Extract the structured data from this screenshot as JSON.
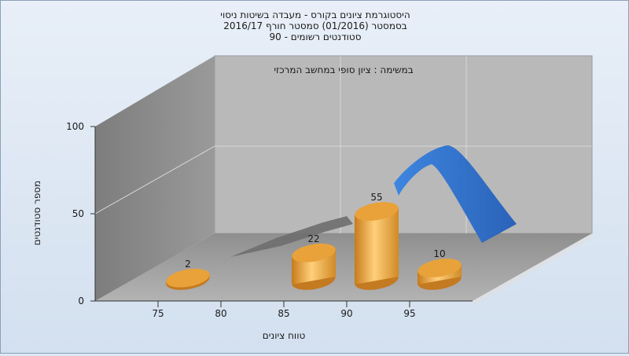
{
  "chart_data": {
    "type": "bar",
    "title_lines": [
      "היסטוגרמת ציונים בקורס - מעבדה בשיטות ניסוי",
      "בסמסטר  (01/2016)  סמסטר חורף 2016/17",
      "סטודנטים רשומים - 90"
    ],
    "subtitle": "במשימה : ציון סופי במחשב המרכזי",
    "xlabel": "טווח ציונים",
    "ylabel": "מספר סטודנטים",
    "x_ticks": [
      "75",
      "80",
      "85",
      "90",
      "95"
    ],
    "y_ticks": [
      "0",
      "50",
      "100"
    ],
    "ylim": [
      0,
      100
    ],
    "grid": true,
    "bars": [
      {
        "range": "75-80",
        "value": 2
      },
      {
        "range": "85-90",
        "value": 22
      },
      {
        "range": "90-95",
        "value": 55
      },
      {
        "range": "95-100",
        "value": 10
      }
    ],
    "colors": {
      "bar": "#e8a030",
      "curve": "#2f6fc4",
      "back_wall": "#b8b8b8",
      "left_wall": "#8a8a8a",
      "floor": "#a6a6a6",
      "shadow": "#6e6e6e"
    }
  }
}
